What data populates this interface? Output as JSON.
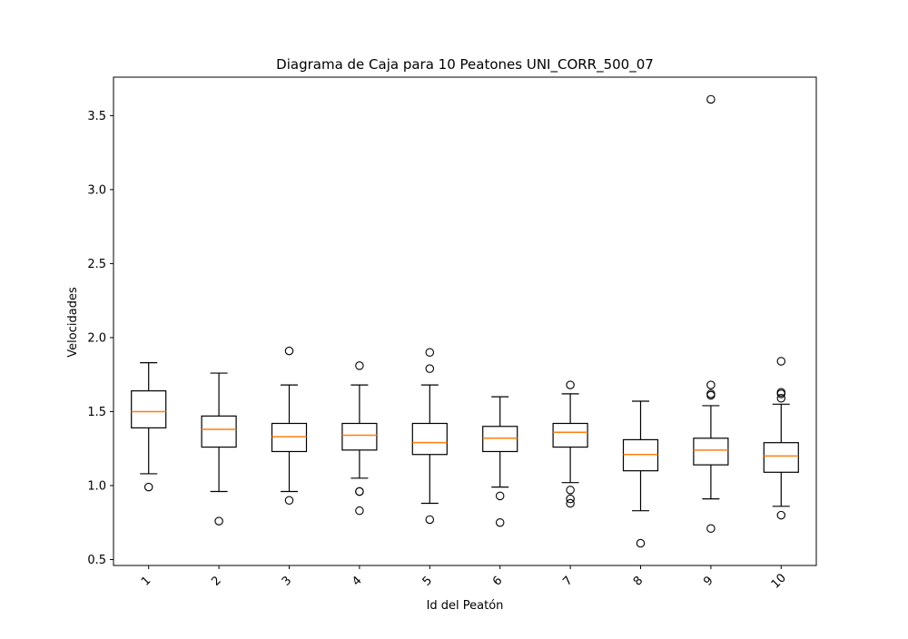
{
  "chart_data": {
    "type": "box",
    "title": "Diagrama de Caja para 10 Peatones UNI_CORR_500_07",
    "xlabel": "Id del Peatón",
    "ylabel": "Velocidades",
    "ylim": [
      0.46,
      3.76
    ],
    "yticks": [
      "0.5",
      "1.0",
      "1.5",
      "2.0",
      "2.5",
      "3.0",
      "3.5"
    ],
    "grid": false,
    "box_color": "#000000",
    "median_color": "#ff7f0e",
    "categories": [
      "1",
      "2",
      "3",
      "4",
      "5",
      "6",
      "7",
      "8",
      "9",
      "10"
    ],
    "boxes": [
      {
        "label": "1",
        "whisker_low": 1.08,
        "q1": 1.39,
        "median": 1.5,
        "q3": 1.64,
        "whisker_high": 1.83,
        "outliers": [
          0.99
        ]
      },
      {
        "label": "2",
        "whisker_low": 0.96,
        "q1": 1.26,
        "median": 1.38,
        "q3": 1.47,
        "whisker_high": 1.76,
        "outliers": [
          0.76
        ]
      },
      {
        "label": "3",
        "whisker_low": 0.96,
        "q1": 1.23,
        "median": 1.33,
        "q3": 1.42,
        "whisker_high": 1.68,
        "outliers": [
          0.9,
          1.91
        ]
      },
      {
        "label": "4",
        "whisker_low": 1.05,
        "q1": 1.24,
        "median": 1.34,
        "q3": 1.42,
        "whisker_high": 1.68,
        "outliers": [
          0.83,
          0.96,
          0.96,
          1.81
        ]
      },
      {
        "label": "5",
        "whisker_low": 0.88,
        "q1": 1.21,
        "median": 1.29,
        "q3": 1.42,
        "whisker_high": 1.68,
        "outliers": [
          0.77,
          1.79,
          1.9
        ]
      },
      {
        "label": "6",
        "whisker_low": 0.99,
        "q1": 1.23,
        "median": 1.32,
        "q3": 1.4,
        "whisker_high": 1.6,
        "outliers": [
          0.75,
          0.93
        ]
      },
      {
        "label": "7",
        "whisker_low": 1.02,
        "q1": 1.26,
        "median": 1.36,
        "q3": 1.42,
        "whisker_high": 1.62,
        "outliers": [
          0.88,
          0.91,
          0.97,
          1.68
        ]
      },
      {
        "label": "8",
        "whisker_low": 0.83,
        "q1": 1.1,
        "median": 1.21,
        "q3": 1.31,
        "whisker_high": 1.57,
        "outliers": [
          0.61
        ]
      },
      {
        "label": "9",
        "whisker_low": 0.91,
        "q1": 1.14,
        "median": 1.24,
        "q3": 1.32,
        "whisker_high": 1.54,
        "outliers": [
          0.71,
          1.61,
          1.62,
          1.68,
          3.61
        ]
      },
      {
        "label": "10",
        "whisker_low": 0.86,
        "q1": 1.09,
        "median": 1.2,
        "q3": 1.29,
        "whisker_high": 1.55,
        "outliers": [
          0.8,
          1.59,
          1.62,
          1.63,
          1.84
        ]
      }
    ]
  }
}
